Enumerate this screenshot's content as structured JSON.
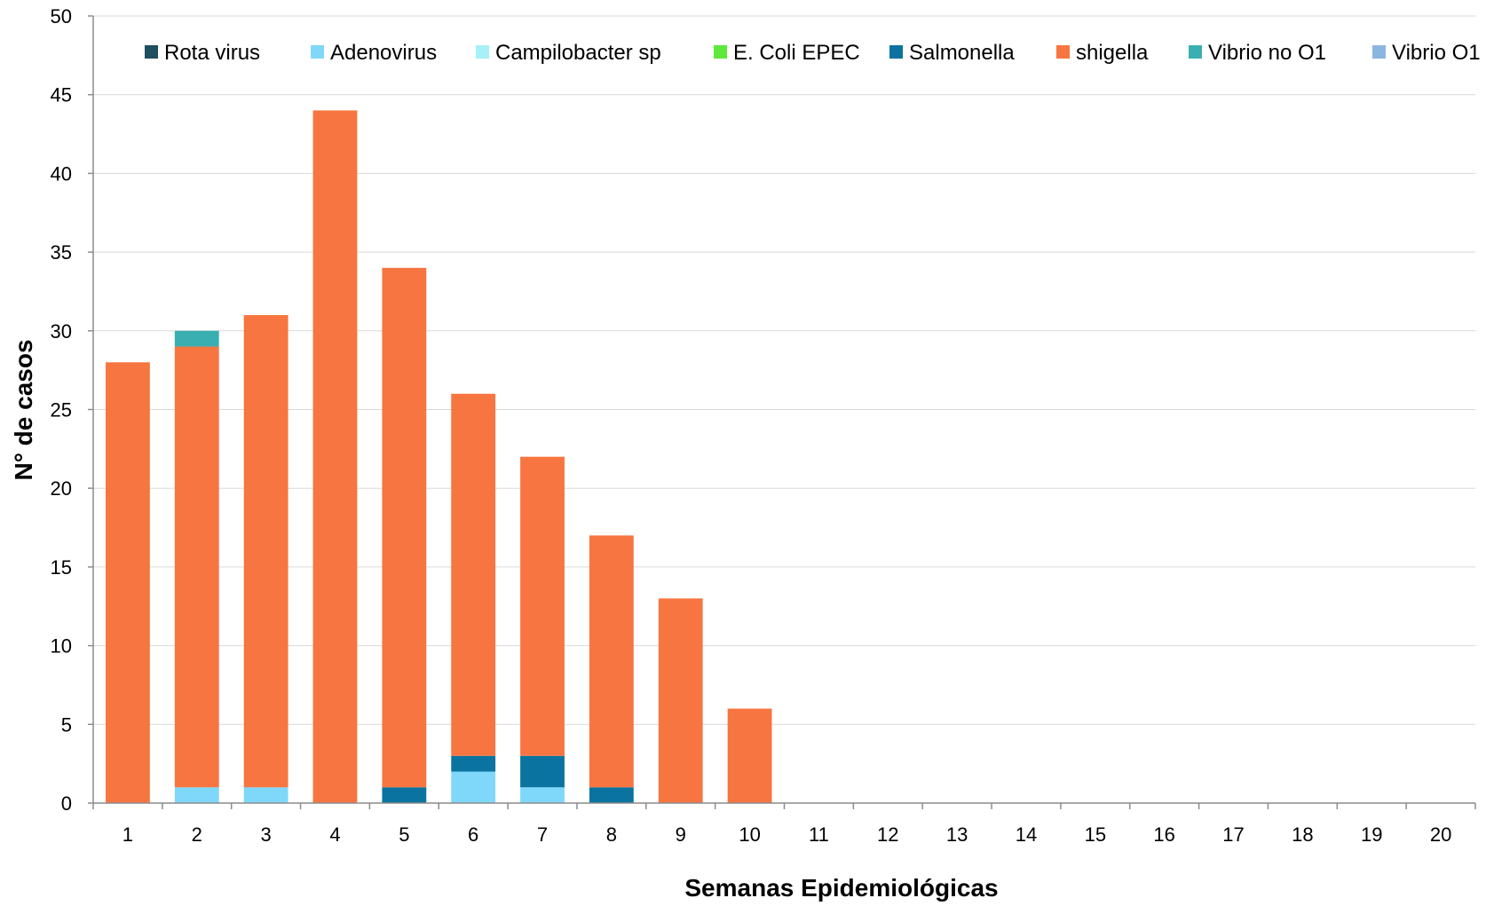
{
  "chart_data": {
    "type": "bar",
    "stacked": true,
    "title": "",
    "xlabel": "Semanas Epidemiológicas",
    "ylabel": "N° de casos",
    "ylim": [
      0,
      50
    ],
    "yticks": [
      "0",
      "5",
      "10",
      "15",
      "20",
      "25",
      "30",
      "35",
      "40",
      "45",
      "50"
    ],
    "grid": true,
    "legend_position": "top",
    "categories": [
      "1",
      "2",
      "3",
      "4",
      "5",
      "6",
      "7",
      "8",
      "9",
      "10",
      "11",
      "12",
      "13",
      "14",
      "15",
      "16",
      "17",
      "18",
      "19",
      "20"
    ],
    "series": [
      {
        "name": "Rota virus",
        "color": "#1F4E5F",
        "values": [
          0,
          0,
          0,
          0,
          0,
          0,
          0,
          0,
          0,
          0,
          0,
          0,
          0,
          0,
          0,
          0,
          0,
          0,
          0,
          0
        ]
      },
      {
        "name": "Adenovirus",
        "color": "#7FD8FA",
        "values": [
          0,
          1,
          1,
          0,
          0,
          2,
          1,
          0,
          0,
          0,
          0,
          0,
          0,
          0,
          0,
          0,
          0,
          0,
          0,
          0
        ]
      },
      {
        "name": "Campilobacter sp",
        "color": "#A8F0F8",
        "values": [
          0,
          0,
          0,
          0,
          0,
          0,
          0,
          0,
          0,
          0,
          0,
          0,
          0,
          0,
          0,
          0,
          0,
          0,
          0,
          0
        ]
      },
      {
        "name": "E. Coli EPEC",
        "color": "#5DE83A",
        "values": [
          0,
          0,
          0,
          0,
          0,
          0,
          0,
          0,
          0,
          0,
          0,
          0,
          0,
          0,
          0,
          0,
          0,
          0,
          0,
          0
        ]
      },
      {
        "name": "Salmonella",
        "color": "#0B73A0",
        "values": [
          0,
          0,
          0,
          0,
          1,
          1,
          2,
          1,
          0,
          0,
          0,
          0,
          0,
          0,
          0,
          0,
          0,
          0,
          0,
          0
        ]
      },
      {
        "name": "shigella",
        "color": "#F77540",
        "values": [
          28,
          28,
          30,
          44,
          33,
          23,
          19,
          16,
          13,
          6,
          0,
          0,
          0,
          0,
          0,
          0,
          0,
          0,
          0,
          0
        ]
      },
      {
        "name": "Vibrio no O1",
        "color": "#3AAFB2",
        "values": [
          0,
          1,
          0,
          0,
          0,
          0,
          0,
          0,
          0,
          0,
          0,
          0,
          0,
          0,
          0,
          0,
          0,
          0,
          0,
          0
        ]
      },
      {
        "name": "Vibrio O1",
        "color": "#8AB6E0",
        "values": [
          0,
          0,
          0,
          0,
          0,
          0,
          0,
          0,
          0,
          0,
          0,
          0,
          0,
          0,
          0,
          0,
          0,
          0,
          0,
          0
        ]
      }
    ]
  }
}
